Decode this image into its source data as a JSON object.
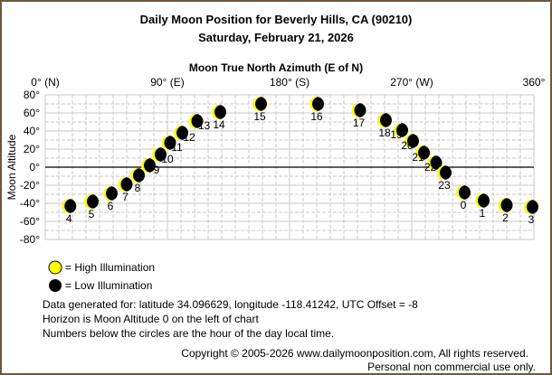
{
  "chart_data": {
    "type": "scatter",
    "title": "Daily Moon Position for Beverly Hills, CA (90210)",
    "subtitle": "Saturday, February 21, 2026",
    "xlabel": "Moon True North Azimuth (E of N)",
    "ylabel": "Moon Altitude",
    "xlim": [
      0,
      360
    ],
    "ylim": [
      -80,
      80
    ],
    "x_ticks": [
      {
        "value": 0,
        "label": "0° (N)"
      },
      {
        "value": 90,
        "label": "90° (E)"
      },
      {
        "value": 180,
        "label": "180° (S)"
      },
      {
        "value": 270,
        "label": "270° (W)"
      },
      {
        "value": 360,
        "label": "360°"
      }
    ],
    "y_ticks": [
      {
        "value": 80,
        "label": "80°"
      },
      {
        "value": 60,
        "label": "60°"
      },
      {
        "value": 40,
        "label": "40°"
      },
      {
        "value": 20,
        "label": "20°"
      },
      {
        "value": 0,
        "label": "0°"
      },
      {
        "value": -20,
        "label": "-20°"
      },
      {
        "value": -40,
        "label": "-40°"
      },
      {
        "value": -60,
        "label": "-60°"
      },
      {
        "value": -80,
        "label": "-80°"
      }
    ],
    "grid": true,
    "horizon_line": 0,
    "points": [
      {
        "hour": "4",
        "azimuth": 17.5,
        "altitude": -43
      },
      {
        "hour": "5",
        "azimuth": 34,
        "altitude": -38
      },
      {
        "hour": "6",
        "azimuth": 48,
        "altitude": -29
      },
      {
        "hour": "7",
        "azimuth": 59,
        "altitude": -19
      },
      {
        "hour": "8",
        "azimuth": 68,
        "altitude": -9
      },
      {
        "hour": "9",
        "azimuth": 76,
        "altitude": 2
      },
      {
        "hour": "10",
        "azimuth": 84,
        "altitude": 14
      },
      {
        "hour": "11",
        "azimuth": 91,
        "altitude": 27
      },
      {
        "hour": "12",
        "azimuth": 100,
        "altitude": 38
      },
      {
        "hour": "13",
        "azimuth": 111,
        "altitude": 51
      },
      {
        "hour": "14",
        "azimuth": 128,
        "altitude": 61
      },
      {
        "hour": "15",
        "azimuth": 158,
        "altitude": 70
      },
      {
        "hour": "16",
        "azimuth": 200,
        "altitude": 70
      },
      {
        "hour": "17",
        "azimuth": 231,
        "altitude": 63
      },
      {
        "hour": "18",
        "azimuth": 250,
        "altitude": 52
      },
      {
        "hour": "19",
        "azimuth": 262,
        "altitude": 41
      },
      {
        "hour": "20",
        "azimuth": 270,
        "altitude": 29
      },
      {
        "hour": "21",
        "azimuth": 278,
        "altitude": 16
      },
      {
        "hour": "22",
        "azimuth": 287,
        "altitude": 5
      },
      {
        "hour": "23",
        "azimuth": 294,
        "altitude": -6
      },
      {
        "hour": "0",
        "azimuth": 308,
        "altitude": -28
      },
      {
        "hour": "1",
        "azimuth": 322,
        "altitude": -37
      },
      {
        "hour": "2",
        "azimuth": 339,
        "altitude": -42
      },
      {
        "hour": "3",
        "azimuth": 358,
        "altitude": -44
      }
    ],
    "legend": [
      {
        "label": "= High Illumination",
        "color": "#ffff00"
      },
      {
        "label": "= Low Illumination",
        "color": "#000000"
      }
    ]
  },
  "info": {
    "line1": "Data generated for: latitude 34.096629, longitude -118.41242, UTC Offset = -8",
    "line2": "Horizon is Moon Altitude 0 on the left of chart",
    "line3": "Numbers below the circles are the hour of the day local time."
  },
  "footer": {
    "copyright": "Copyright © 2005-2026 www.dailymoonposition.com, All rights reserved.",
    "usage": "Personal non commercial use only."
  },
  "colors": {
    "border": "#6b5a3a",
    "grid": "#c8c8c8",
    "moon_lit": "#ffff00",
    "moon_dark": "#000000"
  }
}
